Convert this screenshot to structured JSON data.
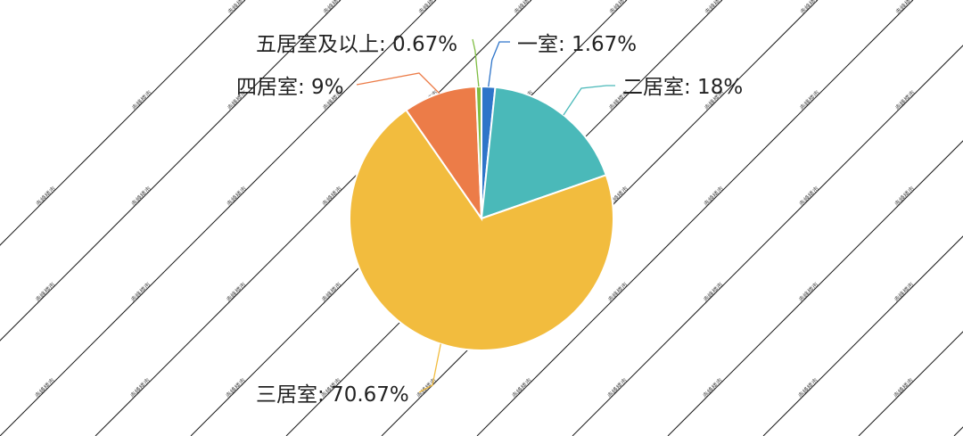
{
  "chart_data": {
    "type": "pie",
    "title": "",
    "watermark": "赤峰楼市",
    "slices": [
      {
        "label": "一室",
        "value": 1.67,
        "display": "一室: 1.67%",
        "color": "#2e75c9"
      },
      {
        "label": "二居室",
        "value": 18,
        "display": "二居室: 18%",
        "color": "#4ab9b9"
      },
      {
        "label": "三居室",
        "value": 70.67,
        "display": "三居室: 70.67%",
        "color": "#f2bc3e"
      },
      {
        "label": "四居室",
        "value": 9,
        "display": "四居室: 9%",
        "color": "#ec7c48"
      },
      {
        "label": "五居室及以上",
        "value": 0.67,
        "display": "五居室及以上: 0.67%",
        "color": "#7fbd42"
      }
    ],
    "start_angle": "top",
    "direction": "clockwise",
    "legend": "none (labels with leader lines)"
  }
}
